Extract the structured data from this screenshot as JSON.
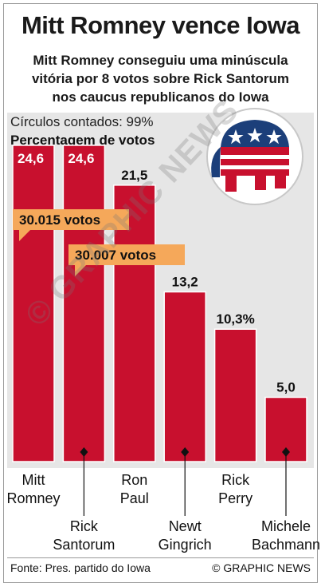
{
  "header": {
    "title": "Mitt Romney vence Iowa",
    "subtitle_lines": [
      "Mitt Romney conseguiu uma minúscula",
      "vitória por 8 votos sobre Rick Santorum",
      "nos caucus republicanos do Iowa"
    ]
  },
  "chart_data": {
    "type": "bar",
    "note": "Círculos contados: 99%",
    "ylabel": "Percentagem de votos",
    "categories": [
      "Mitt Romney",
      "Rick Santorum",
      "Ron Paul",
      "Newt Gingrich",
      "Rick Perry",
      "Michele Bachmann"
    ],
    "values": [
      24.6,
      24.6,
      21.5,
      13.2,
      10.3,
      5.0
    ],
    "value_labels": [
      "24,6",
      "24,6",
      "21,5",
      "13,2",
      "10,3%",
      "5,0"
    ],
    "category_lines": [
      [
        "Mitt",
        "Romney"
      ],
      [
        "Rick",
        "Santorum"
      ],
      [
        "Ron",
        "Paul"
      ],
      [
        "Newt",
        "Gingrich"
      ],
      [
        "Rick",
        "Perry"
      ],
      [
        "Michele",
        "Bachmann"
      ]
    ],
    "ylim": [
      0,
      27
    ],
    "callouts": [
      {
        "bar_index": 0,
        "text": "30.015 votos"
      },
      {
        "bar_index": 1,
        "text": "30.007 votos"
      }
    ],
    "colors": {
      "bar": "#c8102e",
      "callout": "#f5a85a",
      "panel": "#e6e6e6"
    }
  },
  "logo": {
    "name": "republican-elephant-logo"
  },
  "watermark": "© GRAPHIC NEWS",
  "footer": {
    "source": "Fonte: Pres. partido do Iowa",
    "credit": "© GRAPHIC NEWS"
  }
}
